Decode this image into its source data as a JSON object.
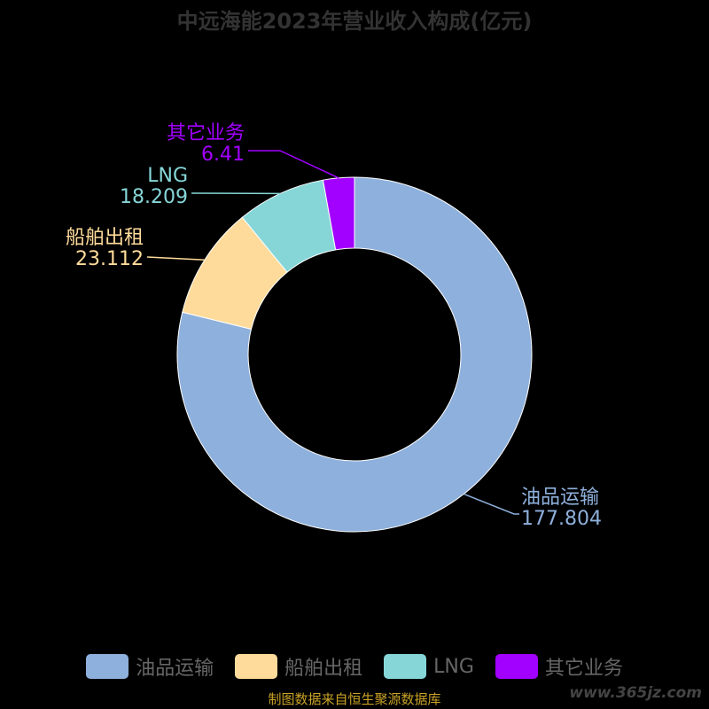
{
  "title": "中远海能2023年营业收入构成(亿元)",
  "source": "制图数据来自恒生聚源数据库",
  "watermark": "www.365jz.com",
  "chart_data": {
    "type": "pie",
    "title": "中远海能2023年营业收入构成(亿元)",
    "categories": [
      "油品运输",
      "船舶出租",
      "LNG",
      "其它业务"
    ],
    "values": [
      177.804,
      23.112,
      18.209,
      6.41
    ],
    "value_labels": [
      "177.804",
      "23.112",
      "18.209",
      "6.41"
    ],
    "colors": [
      "#8eb0dc",
      "#ffdb9b",
      "#86d6d8",
      "#a200ff"
    ],
    "legend_position": "bottom",
    "donut": true
  }
}
